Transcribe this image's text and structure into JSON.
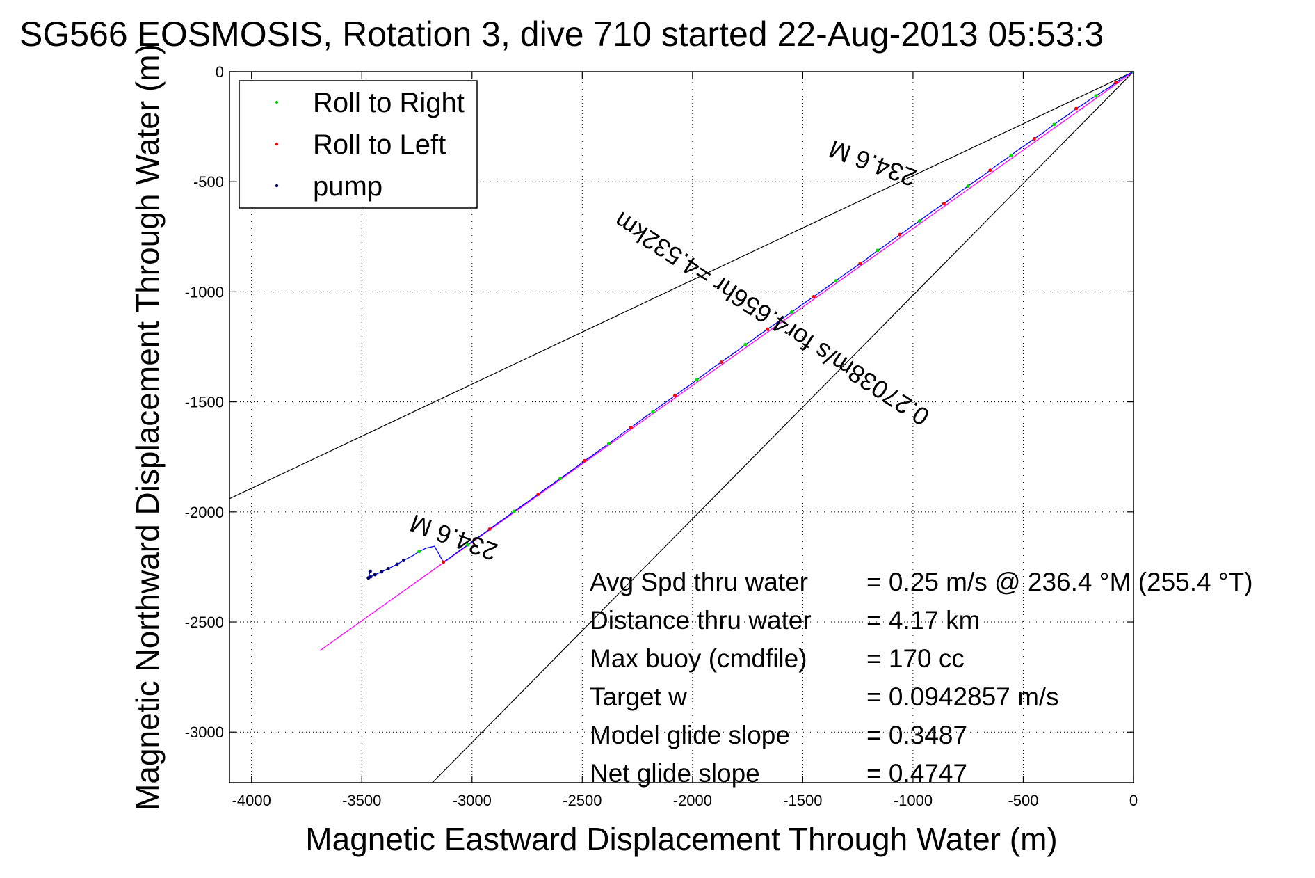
{
  "chart_data": {
    "type": "line",
    "title": "SG566 EOSMOSIS, Rotation 3, dive 710 started 22-Aug-2013 05:53:3",
    "xlabel": "Magnetic Eastward Displacement Through Water (m)",
    "ylabel": "Magnetic Northward Displacement Through Water (m)",
    "xlim": [
      -4100,
      0
    ],
    "ylim": [
      -3230,
      0
    ],
    "xticks": [
      -4000,
      -3500,
      -3000,
      -2500,
      -2000,
      -1500,
      -1000,
      -500,
      0
    ],
    "yticks": [
      0,
      -500,
      -1000,
      -1500,
      -2000,
      -2500,
      -3000
    ],
    "grid": true,
    "legend_position": "top-left",
    "colors": {
      "track": "#0000ff",
      "roll_right": "#00dd00",
      "roll_left": "#ff0000",
      "pump": "#000066",
      "reference_line": "#ff00ff",
      "bounds": "#000000"
    },
    "legend": [
      {
        "label": "Roll to Right",
        "color": "#00dd00"
      },
      {
        "label": "Roll to Left",
        "color": "#ff0000"
      },
      {
        "label": "pump",
        "color": "#000066"
      }
    ],
    "series": [
      {
        "name": "track",
        "x": [
          0,
          -30,
          -60,
          -80,
          -110,
          -140,
          -170,
          -195,
          -230,
          -260,
          -295,
          -330,
          -360,
          -390,
          -410,
          -450,
          -500,
          -530,
          -555,
          -590,
          -620,
          -650,
          -690,
          -730,
          -750,
          -790,
          -820,
          -860,
          -890,
          -930,
          -970,
          -1010,
          -1040,
          -1060,
          -1100,
          -1130,
          -1160,
          -1190,
          -1220,
          -1240,
          -1280,
          -1320,
          -1350,
          -1380,
          -1420,
          -1450,
          -1480,
          -1520,
          -1550,
          -1590,
          -1620,
          -1660,
          -1700,
          -1730,
          -1760,
          -1800,
          -1840,
          -1870,
          -1900,
          -1940,
          -1980,
          -2000,
          -2040,
          -2080,
          -2110,
          -2150,
          -2180,
          -2210,
          -2250,
          -2280,
          -2320,
          -2350,
          -2380,
          -2420,
          -2460,
          -2490,
          -2530,
          -2560,
          -2600,
          -2630,
          -2660,
          -2700,
          -2740,
          -2770,
          -2810,
          -2850,
          -2880,
          -2920,
          -2950,
          -2990,
          -3020,
          -3060,
          -3100,
          -3130,
          -3170,
          -3210,
          -3240,
          -3270,
          -3310,
          -3340,
          -3380,
          -3410,
          -3440,
          -3460,
          -3470,
          -3462
        ],
        "y": [
          0,
          -15,
          -35,
          -50,
          -72,
          -90,
          -110,
          -125,
          -150,
          -168,
          -195,
          -218,
          -240,
          -262,
          -278,
          -305,
          -340,
          -360,
          -380,
          -405,
          -425,
          -448,
          -478,
          -505,
          -520,
          -548,
          -570,
          -600,
          -620,
          -648,
          -678,
          -705,
          -728,
          -740,
          -770,
          -792,
          -812,
          -835,
          -858,
          -872,
          -900,
          -928,
          -950,
          -972,
          -1000,
          -1022,
          -1042,
          -1070,
          -1092,
          -1120,
          -1142,
          -1170,
          -1198,
          -1220,
          -1240,
          -1270,
          -1298,
          -1320,
          -1340,
          -1370,
          -1400,
          -1415,
          -1443,
          -1472,
          -1494,
          -1522,
          -1545,
          -1565,
          -1595,
          -1617,
          -1645,
          -1668,
          -1690,
          -1718,
          -1748,
          -1768,
          -1798,
          -1820,
          -1848,
          -1870,
          -1890,
          -1920,
          -1948,
          -1970,
          -1998,
          -2028,
          -2048,
          -2078,
          -2100,
          -2128,
          -2150,
          -2178,
          -2208,
          -2228,
          -2156,
          -2165,
          -2180,
          -2200,
          -2220,
          -2238,
          -2258,
          -2272,
          -2285,
          -2295,
          -2300,
          -2270
        ]
      }
    ],
    "bound_lines": [
      {
        "from": [
          0,
          0
        ],
        "to": [
          -4100,
          -1940
        ]
      },
      {
        "from": [
          0,
          0
        ],
        "to": [
          -3180,
          -3230
        ]
      }
    ],
    "reference_line": {
      "from": [
        0,
        0
      ],
      "to": [
        -3690,
        -2630
      ]
    },
    "annotations": [
      {
        "text": "234.6 M",
        "at": [
          -1170,
          -380
        ],
        "angle_deg": 200
      },
      {
        "text": "0.27038m/s for4.656hr =4.532km",
        "at": [
          -1620,
          -1090
        ],
        "angle_deg": 213
      },
      {
        "text": "234.6 M",
        "at": [
          -3070,
          -2080
        ],
        "angle_deg": 200
      }
    ]
  },
  "stats": [
    {
      "label": "Avg Spd thru water",
      "value": "=  0.25 m/s @ 236.4 °M (255.4 °T)"
    },
    {
      "label": "Distance thru water",
      "value": "=  4.17 km"
    },
    {
      "label": "Max buoy (cmdfile)",
      "value": "= 170 cc"
    },
    {
      "label": "Target w",
      "value": "= 0.0942857 m/s"
    },
    {
      "label": "Model glide slope",
      "value": "= 0.3487"
    },
    {
      "label": "Net glide slope",
      "value": "= 0.4747"
    }
  ]
}
